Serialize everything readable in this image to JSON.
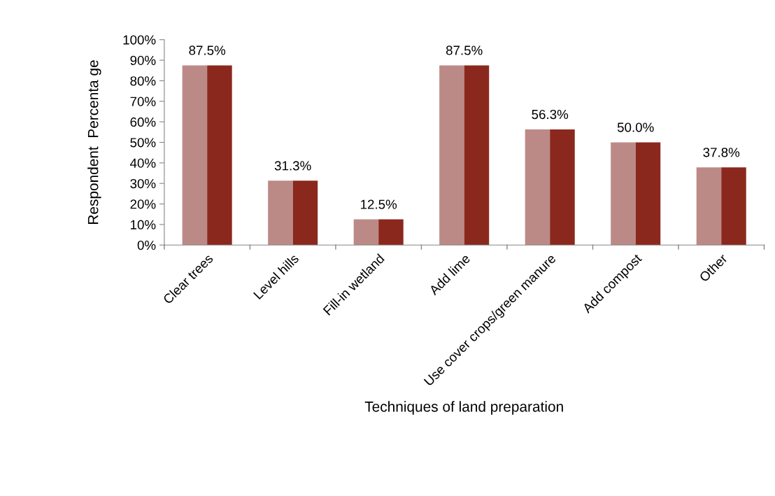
{
  "chart_data": {
    "type": "bar",
    "xlabel": "Techniques of land preparation",
    "ylabel": "Respondent  Percenta ge",
    "categories": [
      "Clear trees",
      "Level hills",
      "Fill-in wetland",
      "Add lime",
      "Use cover crops/green manure",
      "Add compost",
      "Other"
    ],
    "series": [
      {
        "color": "#bc8a86",
        "values": [
          87.5,
          31.3,
          12.5,
          87.5,
          56.3,
          50.0,
          37.8
        ]
      },
      {
        "color": "#8b281e",
        "values": [
          87.5,
          31.3,
          12.5,
          87.5,
          56.3,
          50.0,
          37.8
        ],
        "value_labels": [
          "87.5%",
          "31.3%",
          "12.5%",
          "87.5%",
          "56.3%",
          "50.0%",
          "37.8%"
        ]
      }
    ],
    "ylim": [
      0,
      100
    ],
    "yticks": [
      {
        "value": 0,
        "label": "0%"
      },
      {
        "value": 10,
        "label": "10%"
      },
      {
        "value": 20,
        "label": "20%"
      },
      {
        "value": 30,
        "label": "30%"
      },
      {
        "value": 40,
        "label": "40%"
      },
      {
        "value": 50,
        "label": "50%"
      },
      {
        "value": 60,
        "label": "60%"
      },
      {
        "value": 70,
        "label": "70%"
      },
      {
        "value": 80,
        "label": "80%"
      },
      {
        "value": 90,
        "label": "90%"
      },
      {
        "value": 100,
        "label": "100%"
      }
    ],
    "grid": false,
    "legend": false
  }
}
